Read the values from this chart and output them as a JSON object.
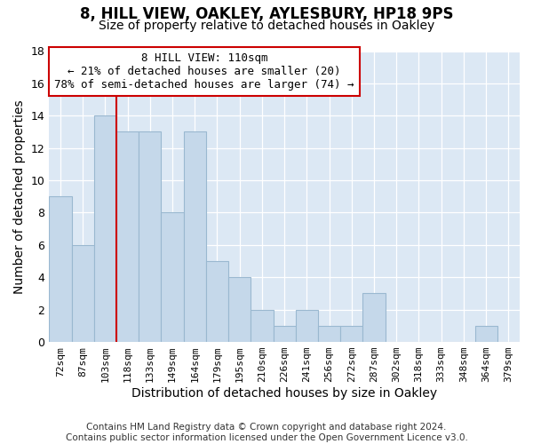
{
  "title": "8, HILL VIEW, OAKLEY, AYLESBURY, HP18 9PS",
  "subtitle": "Size of property relative to detached houses in Oakley",
  "xlabel": "Distribution of detached houses by size in Oakley",
  "ylabel": "Number of detached properties",
  "footnote1": "Contains HM Land Registry data © Crown copyright and database right 2024.",
  "footnote2": "Contains public sector information licensed under the Open Government Licence v3.0.",
  "categories": [
    "72sqm",
    "87sqm",
    "103sqm",
    "118sqm",
    "133sqm",
    "149sqm",
    "164sqm",
    "179sqm",
    "195sqm",
    "210sqm",
    "226sqm",
    "241sqm",
    "256sqm",
    "272sqm",
    "287sqm",
    "302sqm",
    "318sqm",
    "333sqm",
    "348sqm",
    "364sqm",
    "379sqm"
  ],
  "values": [
    9,
    6,
    14,
    13,
    13,
    8,
    13,
    5,
    4,
    2,
    1,
    2,
    1,
    1,
    3,
    0,
    0,
    0,
    0,
    1,
    0
  ],
  "bar_color": "#c5d8ea",
  "bar_edge_color": "#9ab8d0",
  "red_line_x": 2.5,
  "annotation_line1": "8 HILL VIEW: 110sqm",
  "annotation_line2": "← 21% of detached houses are smaller (20)",
  "annotation_line3": "78% of semi-detached houses are larger (74) →",
  "annotation_box_color": "#ffffff",
  "annotation_box_edge": "#cc0000",
  "ylim": [
    0,
    18
  ],
  "yticks": [
    0,
    2,
    4,
    6,
    8,
    10,
    12,
    14,
    16,
    18
  ],
  "bg_color": "#dce8f4",
  "grid_color": "#ffffff",
  "fig_bg": "#ffffff",
  "title_fontsize": 12,
  "subtitle_fontsize": 10,
  "axis_label_fontsize": 10,
  "tick_fontsize": 8,
  "annotation_fontsize": 9,
  "footnote_fontsize": 7.5
}
